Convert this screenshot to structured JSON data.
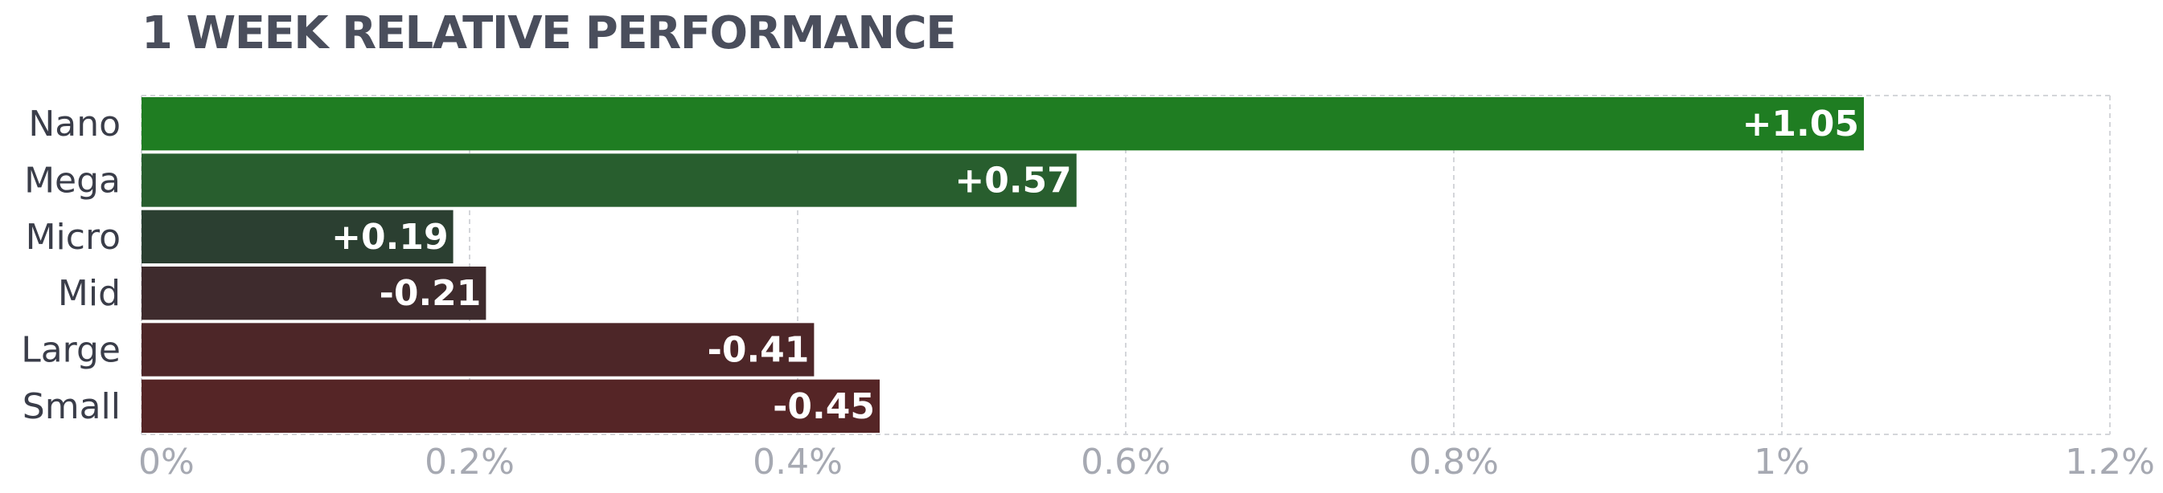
{
  "chart_data": {
    "type": "bar",
    "orientation": "horizontal",
    "title": "1 WEEK RELATIVE PERFORMANCE",
    "categories": [
      "Nano",
      "Mega",
      "Micro",
      "Mid",
      "Large",
      "Small"
    ],
    "values": [
      1.05,
      0.57,
      0.19,
      -0.21,
      -0.41,
      -0.45
    ],
    "value_labels": [
      "+1.05",
      "+0.57",
      "+0.19",
      "-0.21",
      "-0.41",
      "-0.45"
    ],
    "bar_colors": [
      "#1f7d22",
      "#285e2e",
      "#2b3f31",
      "#3e2b2d",
      "#4d2628",
      "#552526"
    ],
    "x_ticks": [
      {
        "value": 0,
        "label": "0%"
      },
      {
        "value": 0.2,
        "label": "0.2%"
      },
      {
        "value": 0.4,
        "label": "0.4%"
      },
      {
        "value": 0.6,
        "label": "0.6%"
      },
      {
        "value": 0.8,
        "label": "0.8%"
      },
      {
        "value": 1.0,
        "label": "1%"
      },
      {
        "value": 1.2,
        "label": "1.2%"
      }
    ],
    "xlim": [
      0,
      1.2
    ],
    "bar_length": "absolute value",
    "grid": true,
    "xlabel": "",
    "ylabel": ""
  }
}
